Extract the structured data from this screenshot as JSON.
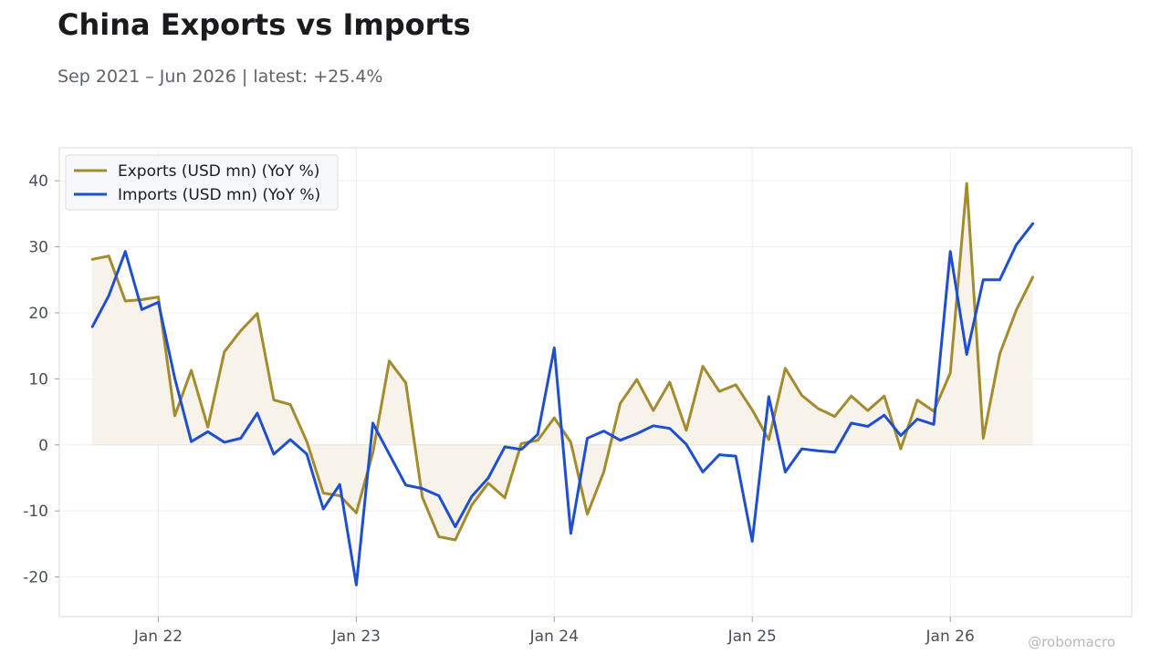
{
  "header": {
    "title": "China Exports vs Imports",
    "subtitle": "Sep 2021 – Jun 2026 | latest: +25.4%"
  },
  "watermark": "@robomacro",
  "colors": {
    "exports": "#a38b2e",
    "imports": "#1f4fd1",
    "fill": "#f7f3ea",
    "grid": "#efefef",
    "axis": "#d9d9d9"
  },
  "chart_data": {
    "type": "line",
    "title": "China Exports vs Imports",
    "subtitle": "Sep 2021 – Jun 2026 | latest: +25.4%",
    "x_start": "2021-09",
    "x_end": "2026-06",
    "xlim": [
      "2021-07",
      "2026-12"
    ],
    "ylim": [
      -26,
      45
    ],
    "x_ticks": [
      {
        "date": "2022-01",
        "label": "Jan 22"
      },
      {
        "date": "2023-01",
        "label": "Jan 23"
      },
      {
        "date": "2024-01",
        "label": "Jan 24"
      },
      {
        "date": "2025-01",
        "label": "Jan 25"
      },
      {
        "date": "2026-01",
        "label": "Jan 26"
      }
    ],
    "y_ticks": [
      {
        "value": 40,
        "label": "40"
      },
      {
        "value": 30,
        "label": "30"
      },
      {
        "value": 20,
        "label": "20"
      },
      {
        "value": 10,
        "label": "10"
      },
      {
        "value": 0,
        "label": "0"
      },
      {
        "value": -10,
        "label": "-10"
      },
      {
        "value": -20,
        "label": "-20"
      }
    ],
    "grid": true,
    "legend_position": "top-left",
    "fill_between": "exports-and-zero",
    "series": [
      {
        "name": "Exports (USD mn) (YoY %)",
        "color": "#a38b2e",
        "values": [
          28.1,
          28.6,
          21.8,
          22.0,
          22.4,
          4.4,
          11.3,
          2.7,
          14.1,
          17.3,
          19.9,
          6.8,
          6.1,
          0.5,
          -7.3,
          -7.7,
          -10.3,
          -1.2,
          12.7,
          9.4,
          -7.9,
          -13.9,
          -14.4,
          -9.1,
          -5.8,
          -8.0,
          0.2,
          0.7,
          4.1,
          0.4,
          -10.5,
          -4.1,
          6.3,
          9.9,
          5.2,
          9.5,
          2.2,
          11.9,
          8.1,
          9.1,
          5.3,
          0.8,
          11.6,
          7.5,
          5.5,
          4.3,
          7.4,
          5.2,
          7.4,
          -0.6,
          6.8,
          5.1,
          10.9,
          39.6,
          1.0,
          13.8,
          20.4,
          25.4
        ],
        "dates": [
          "2021-09",
          "2021-10",
          "2021-11",
          "2021-12",
          "2022-01",
          "2022-02",
          "2022-03",
          "2022-04",
          "2022-05",
          "2022-06",
          "2022-07",
          "2022-08",
          "2022-09",
          "2022-10",
          "2022-11",
          "2022-12",
          "2023-01",
          "2023-02",
          "2023-03",
          "2023-04",
          "2023-05",
          "2023-06",
          "2023-07",
          "2023-08",
          "2023-09",
          "2023-10",
          "2023-11",
          "2023-12",
          "2024-01",
          "2024-02",
          "2024-03",
          "2024-04",
          "2024-05",
          "2024-06",
          "2024-07",
          "2024-08",
          "2024-09",
          "2024-10",
          "2024-11",
          "2024-12",
          "2025-01",
          "2025-02",
          "2025-03",
          "2025-04",
          "2025-05",
          "2025-06",
          "2025-07",
          "2025-08",
          "2025-09",
          "2025-10",
          "2025-11",
          "2025-12",
          "2026-01",
          "2026-02",
          "2026-03",
          "2026-04",
          "2026-05",
          "2026-06"
        ]
      },
      {
        "name": "Imports (USD mn) (YoY %)",
        "color": "#1f4fd1",
        "values": [
          17.9,
          22.6,
          29.3,
          20.5,
          21.6,
          10.1,
          0.5,
          2.0,
          0.4,
          1.0,
          4.8,
          -1.4,
          0.8,
          -1.4,
          -9.7,
          -6.0,
          -21.2,
          3.3,
          -1.4,
          -6.1,
          -6.6,
          -7.7,
          -12.4,
          -7.8,
          -5.0,
          -0.3,
          -0.7,
          1.6,
          14.7,
          -13.4,
          1.0,
          2.1,
          0.7,
          1.7,
          2.9,
          2.5,
          0.1,
          -4.1,
          -1.5,
          -1.7,
          -14.6,
          7.3,
          -4.1,
          -0.6,
          -0.9,
          -1.1,
          3.3,
          2.8,
          4.5,
          1.4,
          3.9,
          3.1,
          29.3,
          13.7,
          25.0,
          25.0,
          30.3,
          33.5
        ],
        "dates": [
          "2021-09",
          "2021-10",
          "2021-11",
          "2021-12",
          "2022-01",
          "2022-02",
          "2022-03",
          "2022-04",
          "2022-05",
          "2022-06",
          "2022-07",
          "2022-08",
          "2022-09",
          "2022-10",
          "2022-11",
          "2022-12",
          "2023-01",
          "2023-02",
          "2023-03",
          "2023-04",
          "2023-05",
          "2023-06",
          "2023-07",
          "2023-08",
          "2023-09",
          "2023-10",
          "2023-11",
          "2023-12",
          "2024-01",
          "2024-02",
          "2024-03",
          "2024-04",
          "2024-05",
          "2024-06",
          "2024-07",
          "2024-08",
          "2024-09",
          "2024-10",
          "2024-11",
          "2024-12",
          "2025-01",
          "2025-02",
          "2025-03",
          "2025-04",
          "2025-05",
          "2025-06",
          "2025-07",
          "2025-08",
          "2025-09",
          "2025-10",
          "2025-11",
          "2025-12",
          "2026-01",
          "2026-02",
          "2026-03",
          "2026-04",
          "2026-05",
          "2026-06"
        ]
      }
    ]
  }
}
